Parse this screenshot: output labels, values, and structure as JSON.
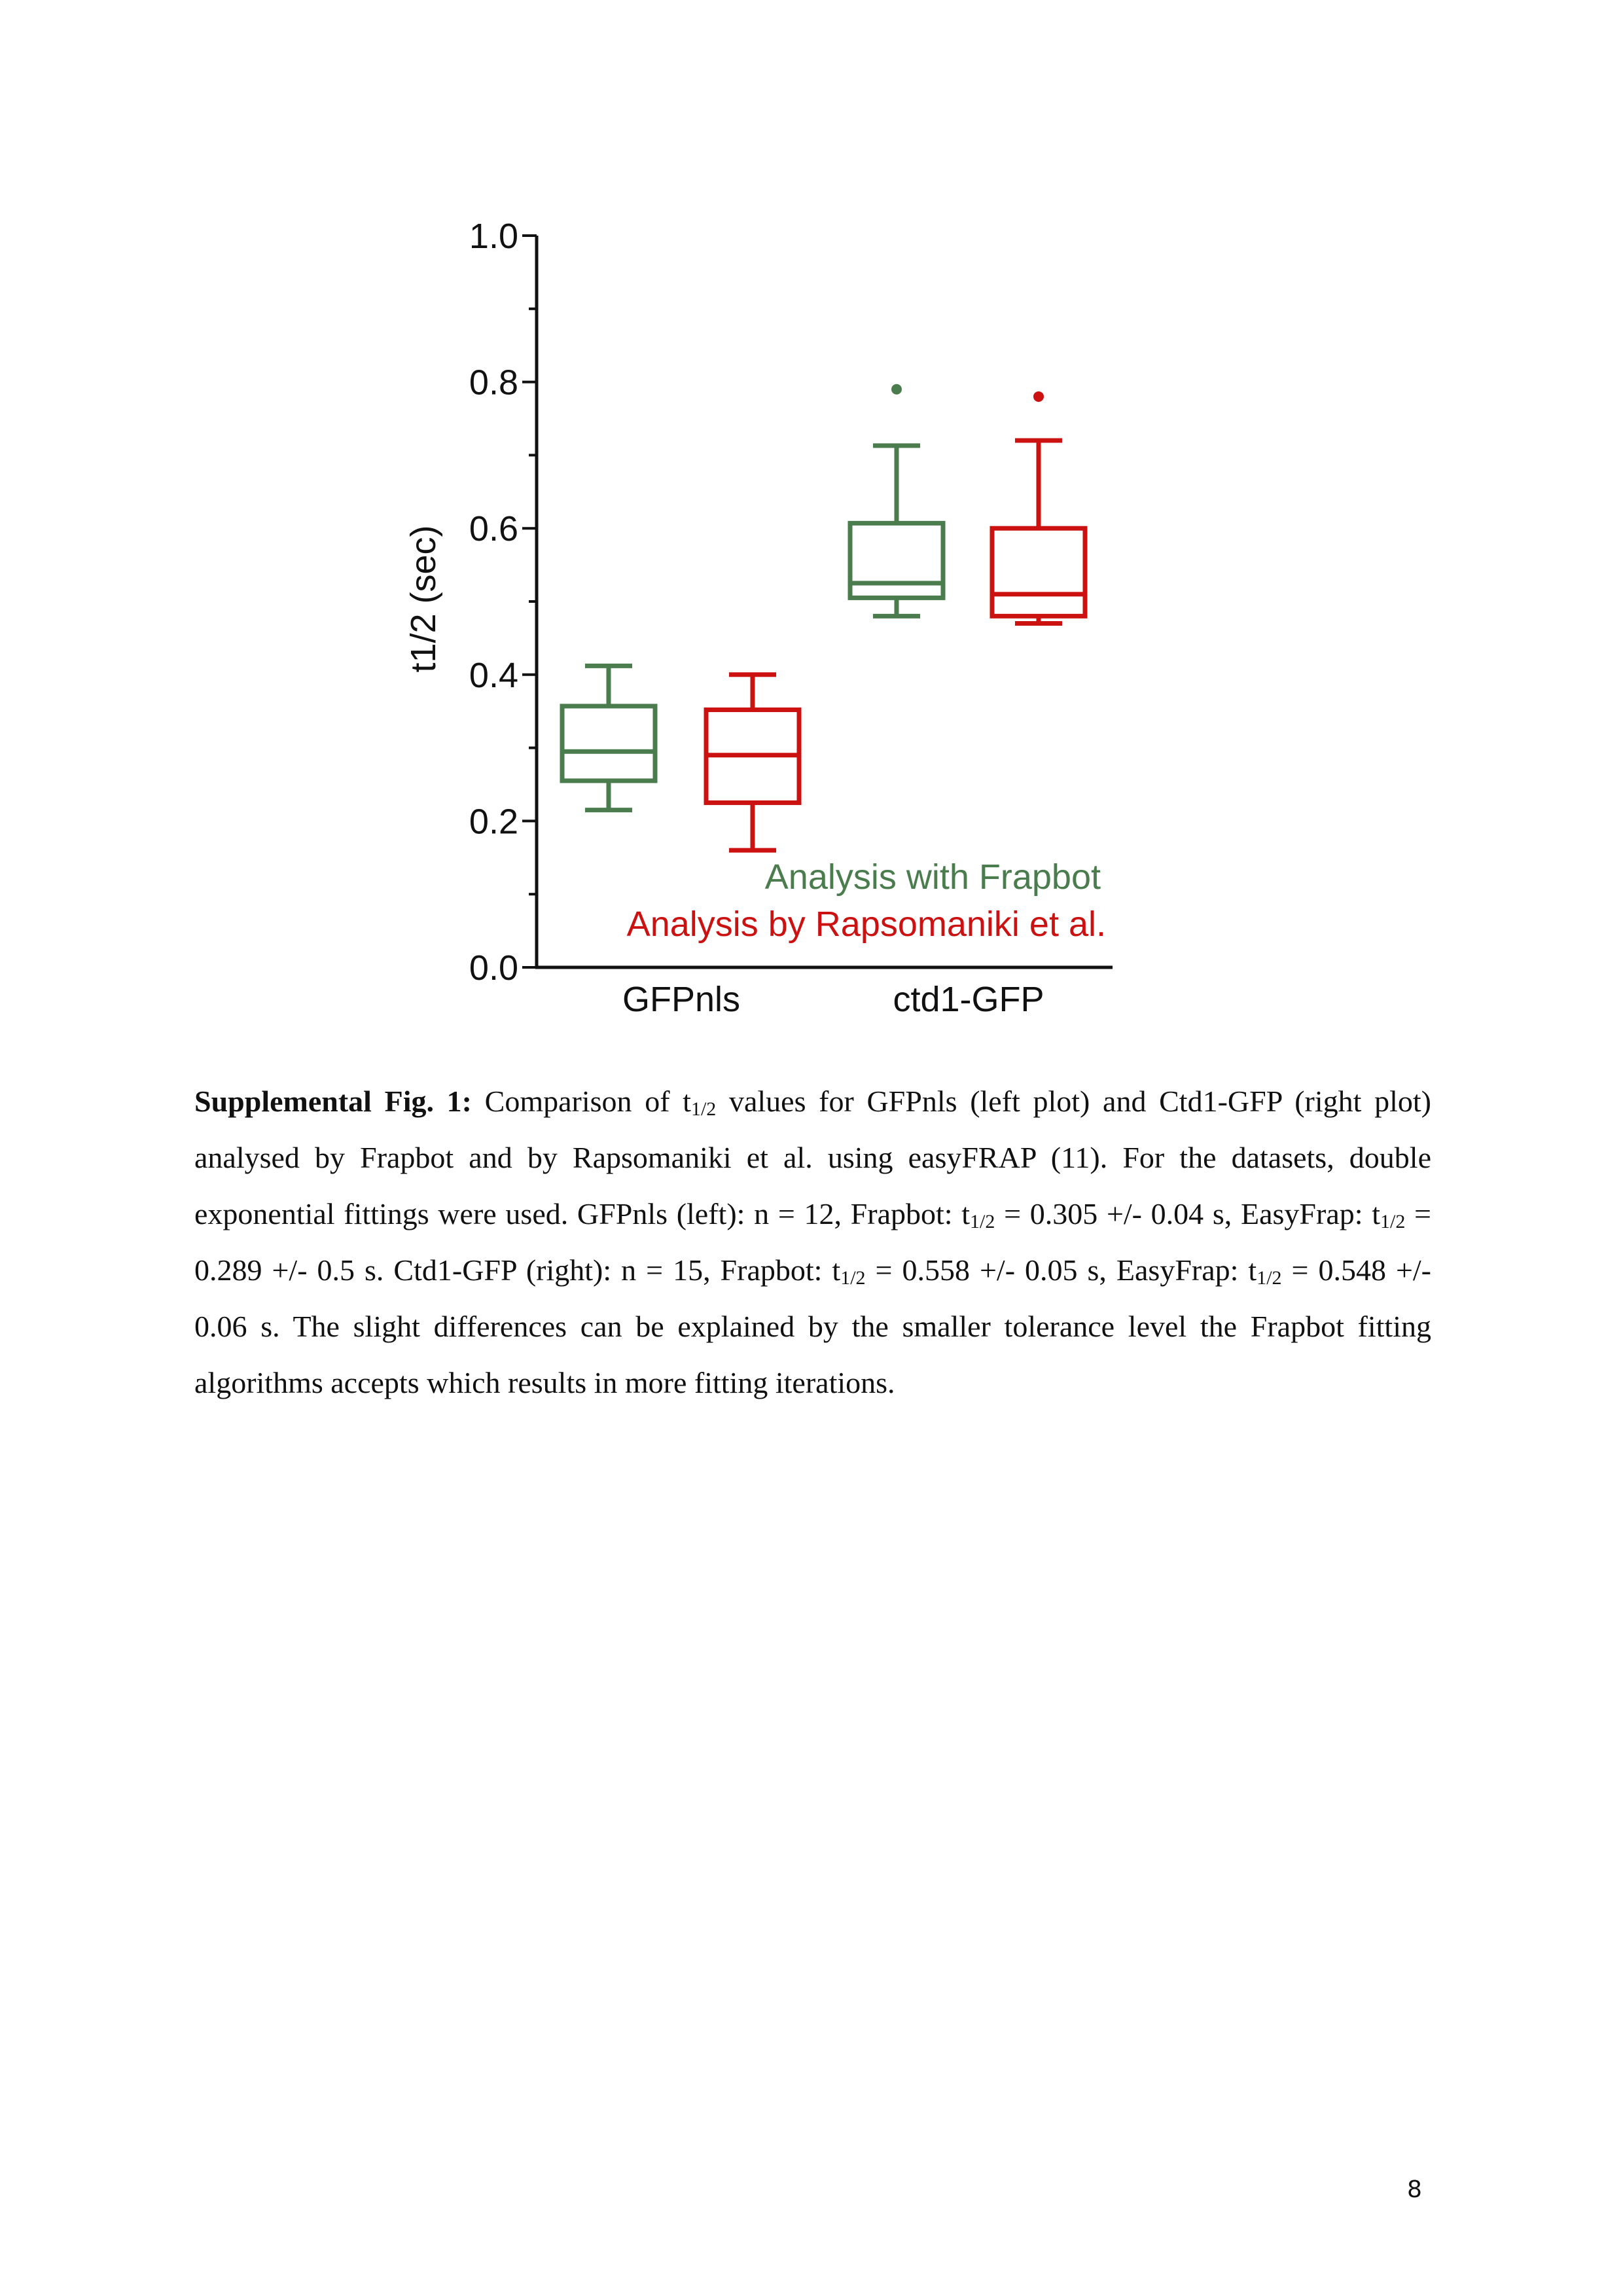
{
  "chart_data": {
    "type": "box",
    "ylabel": "t1/2 (sec)",
    "xlabel": "",
    "ylim": [
      0,
      1.0
    ],
    "yticks": [
      "0.0",
      "0.2",
      "0.4",
      "0.6",
      "0.8",
      "1.0"
    ],
    "categories": [
      "GFPnls",
      "ctd1-GFP"
    ],
    "series": [
      {
        "name": "Analysis with Frapbot",
        "color": "#4a7c4e",
        "boxes": [
          {
            "whisker_low": 0.215,
            "q1": 0.255,
            "median": 0.295,
            "q3": 0.357,
            "whisker_high": 0.412,
            "outliers": []
          },
          {
            "whisker_low": 0.48,
            "q1": 0.505,
            "median": 0.525,
            "q3": 0.607,
            "whisker_high": 0.713,
            "outliers": [
              0.79
            ]
          }
        ]
      },
      {
        "name": "Analysis by Rapsomaniki et al.",
        "color": "#cc1111",
        "boxes": [
          {
            "whisker_low": 0.16,
            "q1": 0.225,
            "median": 0.29,
            "q3": 0.352,
            "whisker_high": 0.4,
            "outliers": []
          },
          {
            "whisker_low": 0.47,
            "q1": 0.48,
            "median": 0.51,
            "q3": 0.6,
            "whisker_high": 0.72,
            "outliers": [
              0.78
            ]
          }
        ]
      }
    ],
    "legend": [
      "Analysis with Frapbot",
      "Analysis by Rapsomaniki et al."
    ],
    "legend_position": "bottom-right",
    "grid": false
  },
  "caption": {
    "lead": "Supplemental Fig. 1:",
    "p1": " Comparison of t",
    "sub1": "1/2",
    "p2": " values for GFPnls (left plot) and Ctd1-GFP (right plot) analysed by Frapbot and by Rapsomaniki et al. using easyFRAP (11). For the datasets, double exponential fittings were used. GFPnls (left): n = 12, Frapbot: t",
    "sub2": "1/2",
    "p3": " = 0.305 +/- 0.04 s, EasyFrap: t",
    "sub3": "1/2",
    "p4": " = 0.289 +/- 0.5 s. Ctd1-GFP (right): n = 15, Frapbot: t",
    "sub4": "1/2",
    "p5": " = 0.558 +/- 0.05 s, EasyFrap: t",
    "sub5": "1/2",
    "p6": " = 0.548 +/- 0.06 s. The slight differences can be explained by the smaller tolerance level the Frapbot fitting algorithms accepts which results in more fitting iterations."
  },
  "page_number": "8"
}
